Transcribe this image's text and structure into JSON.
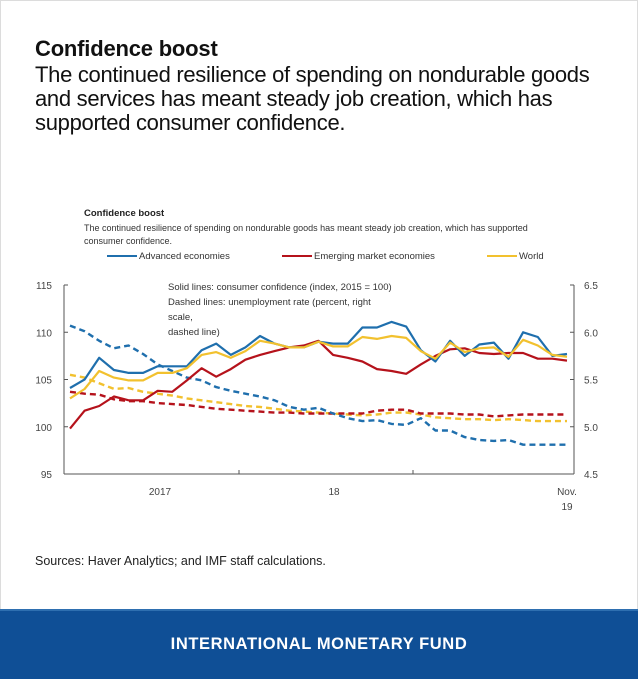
{
  "header": {
    "headline": "Confidence boost",
    "subheadline": "The continued resilience of spending on nondurable goods and services has meant steady job creation, which has supported consumer confidence."
  },
  "chart_caption": {
    "title": "Confidence boost",
    "subtitle": "The continued resilience of spending on nondurable goods has meant steady job creation, which has supported consumer confidence."
  },
  "sources": "Sources: Haver Analytics; and IMF staff calculations.",
  "footer": {
    "organization": "INTERNATIONAL MONETARY FUND"
  },
  "colors": {
    "advanced": "#1f6fad",
    "emerging": "#b5121b",
    "world": "#f2c12e",
    "banner": "#0f4f96"
  },
  "chart_data": {
    "type": "line",
    "title": "Confidence boost",
    "annotations": [
      "Solid lines: consumer confidence (index, 2015 = 100)",
      "Dashed lines: unemployment rate (percent, right scale,",
      "dashed line)"
    ],
    "legend": [
      "Advanced economies",
      "Emerging market economies",
      "World"
    ],
    "legend_position": "top",
    "x_tick_labels": [
      "2017",
      "18",
      "Nov.",
      "19"
    ],
    "x_range": [
      "Jan 2017",
      "Nov 2019"
    ],
    "y_left": {
      "label": "consumer confidence (index, 2015 = 100)",
      "ylim": [
        95,
        115
      ],
      "ticks": [
        "115",
        "110",
        "105",
        "100",
        "95"
      ],
      "tick_values": [
        115,
        110,
        105,
        100,
        95
      ]
    },
    "y_right": {
      "label": "unemployment rate (percent)",
      "ylim": [
        4.5,
        6.5
      ],
      "ticks": [
        "6.5",
        "6.0",
        "5.5",
        "5.0",
        "4.5"
      ],
      "tick_values": [
        6.5,
        6.0,
        5.5,
        5.0,
        4.5
      ]
    },
    "grid": false,
    "months_count": 35,
    "series": [
      {
        "name": "Advanced economies",
        "style": "solid",
        "axis": "left",
        "values": [
          104.1,
          105.0,
          107.3,
          106.0,
          105.7,
          105.7,
          106.4,
          106.4,
          106.4,
          108.1,
          108.8,
          107.6,
          108.4,
          109.6,
          108.8,
          108.4,
          108.4,
          109.0,
          108.8,
          108.8,
          110.5,
          110.5,
          111.1,
          110.6,
          108.1,
          106.9,
          109.1,
          107.5,
          108.7,
          108.9,
          107.2,
          110.0,
          109.5,
          107.5,
          107.7
        ]
      },
      {
        "name": "Emerging market economies",
        "style": "solid",
        "axis": "left",
        "values": [
          99.8,
          101.7,
          102.2,
          103.2,
          102.8,
          102.8,
          103.8,
          103.7,
          104.9,
          106.2,
          105.3,
          106.1,
          107.1,
          107.6,
          108.0,
          108.4,
          108.6,
          109.1,
          107.6,
          107.3,
          106.9,
          106.1,
          105.9,
          105.6,
          106.6,
          107.5,
          108.2,
          108.3,
          107.8,
          107.7,
          107.8,
          107.8,
          107.2,
          107.2,
          107.0
        ]
      },
      {
        "name": "World",
        "style": "solid",
        "axis": "left",
        "values": [
          103.0,
          104.0,
          105.9,
          105.2,
          104.9,
          104.9,
          105.7,
          105.7,
          106.2,
          107.6,
          107.9,
          107.3,
          108.0,
          109.1,
          108.8,
          108.4,
          108.4,
          109.0,
          108.5,
          108.5,
          109.5,
          109.3,
          109.6,
          109.4,
          108.0,
          107.2,
          108.9,
          107.9,
          108.3,
          108.4,
          107.4,
          109.2,
          108.6,
          107.6,
          107.4
        ]
      },
      {
        "name": "Advanced economies unemployment",
        "style": "dashed",
        "axis": "right",
        "values": [
          6.07,
          6.01,
          5.91,
          5.83,
          5.86,
          5.77,
          5.66,
          5.59,
          5.52,
          5.49,
          5.42,
          5.38,
          5.35,
          5.32,
          5.28,
          5.21,
          5.18,
          5.2,
          5.14,
          5.09,
          5.06,
          5.07,
          5.03,
          5.02,
          5.09,
          4.96,
          4.96,
          4.89,
          4.86,
          4.85,
          4.86,
          4.81,
          4.81,
          4.81,
          4.81
        ]
      },
      {
        "name": "Emerging market economies unemployment",
        "style": "dashed",
        "axis": "right",
        "values": [
          5.37,
          5.35,
          5.34,
          5.29,
          5.27,
          5.27,
          5.25,
          5.24,
          5.23,
          5.21,
          5.19,
          5.18,
          5.17,
          5.16,
          5.15,
          5.15,
          5.14,
          5.14,
          5.14,
          5.14,
          5.14,
          5.17,
          5.18,
          5.18,
          5.14,
          5.14,
          5.14,
          5.13,
          5.13,
          5.11,
          5.12,
          5.13,
          5.13,
          5.13,
          5.13
        ]
      },
      {
        "name": "World unemployment",
        "style": "dashed",
        "axis": "right",
        "values": [
          5.55,
          5.52,
          5.46,
          5.4,
          5.41,
          5.37,
          5.35,
          5.33,
          5.3,
          5.28,
          5.26,
          5.24,
          5.22,
          5.21,
          5.19,
          5.17,
          5.16,
          5.15,
          5.14,
          5.13,
          5.12,
          5.13,
          5.15,
          5.15,
          5.13,
          5.1,
          5.09,
          5.08,
          5.08,
          5.07,
          5.08,
          5.07,
          5.06,
          5.06,
          5.06
        ]
      }
    ]
  }
}
